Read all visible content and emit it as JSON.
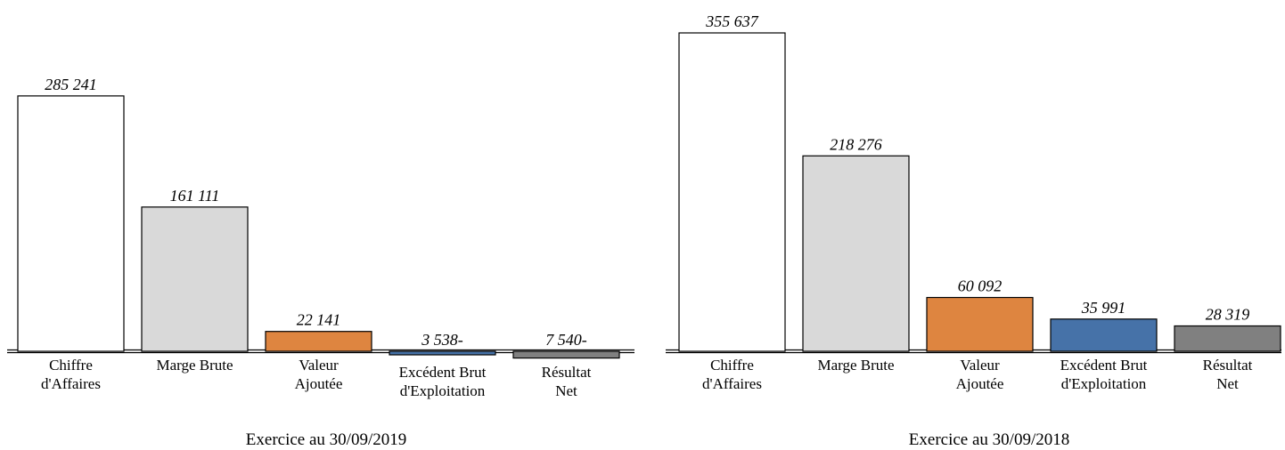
{
  "chart_data": [
    {
      "type": "bar",
      "title": "Exercice au 30/09/2019",
      "categories": [
        [
          "Chiffre",
          "d'Affaires"
        ],
        [
          "Marge Brute"
        ],
        [
          "Valeur",
          "Ajoutée"
        ],
        [
          "Excédent Brut",
          "d'Exploitation"
        ],
        [
          "Résultat",
          "Net"
        ]
      ],
      "values": [
        285241,
        161111,
        22141,
        -3538,
        -7540
      ],
      "value_labels": [
        "285 241",
        "161 111",
        "22 141",
        "3 538-",
        "7 540-"
      ],
      "colors": [
        "#ffffff",
        "#d9d9d9",
        "#de8540",
        "#4672a8",
        "#808080"
      ],
      "xlabel": "",
      "ylabel": "",
      "grid": false,
      "legend": "none"
    },
    {
      "type": "bar",
      "title": "Exercice au 30/09/2018",
      "categories": [
        [
          "Chiffre",
          "d'Affaires"
        ],
        [
          "Marge Brute"
        ],
        [
          "Valeur",
          "Ajoutée"
        ],
        [
          "Excédent Brut",
          "d'Exploitation"
        ],
        [
          "Résultat",
          "Net"
        ]
      ],
      "values": [
        355637,
        218276,
        60092,
        35991,
        28319
      ],
      "value_labels": [
        "355 637",
        "218 276",
        "60 092",
        "35 991",
        "28 319"
      ],
      "colors": [
        "#ffffff",
        "#d9d9d9",
        "#de8540",
        "#4672a8",
        "#808080"
      ],
      "xlabel": "",
      "ylabel": "",
      "grid": false,
      "legend": "none"
    }
  ]
}
